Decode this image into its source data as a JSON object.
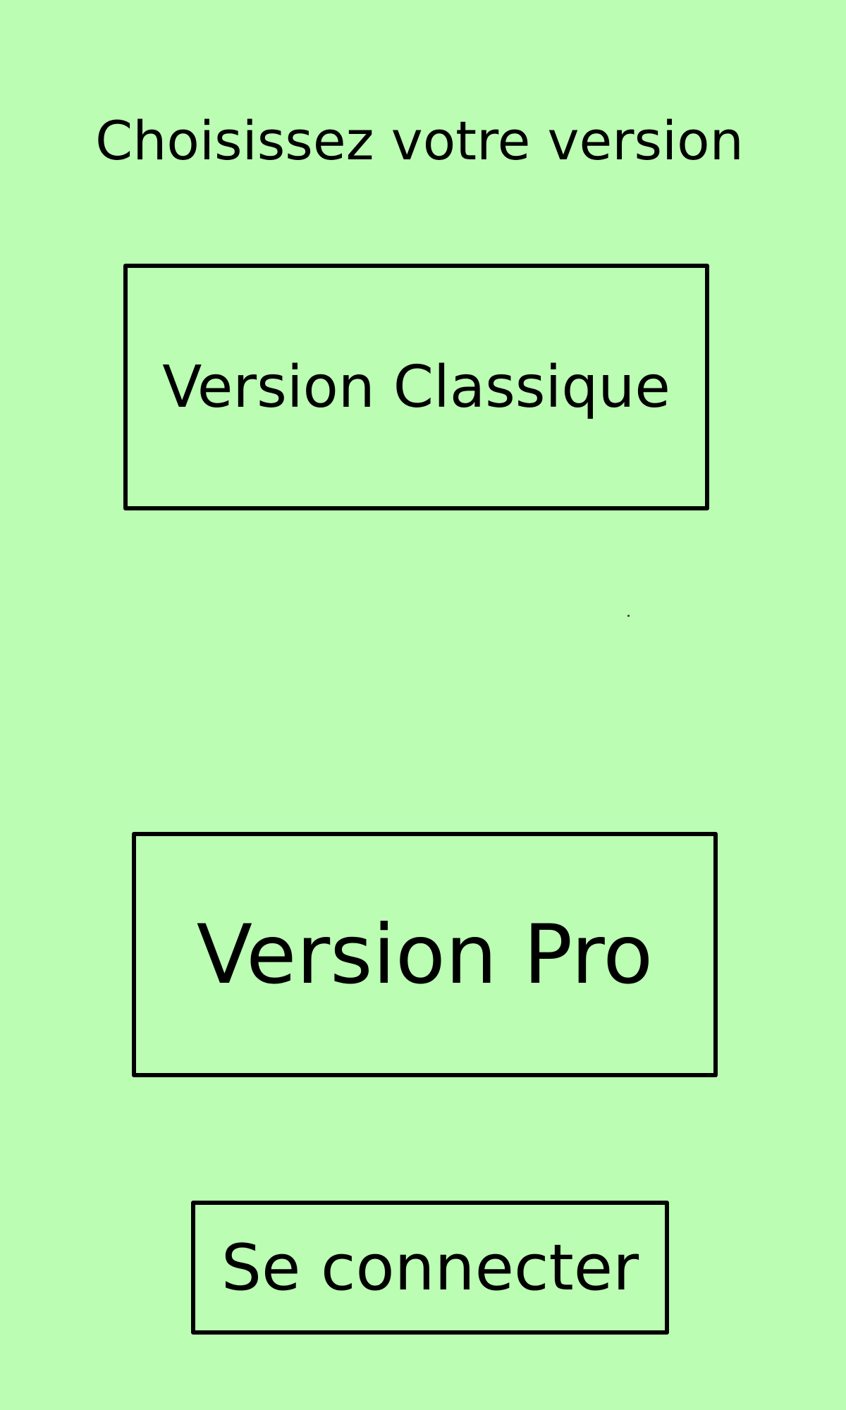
{
  "screen": {
    "title": "Choisissez votre version",
    "background_color": "#bbfdb3"
  },
  "buttons": {
    "classic_label": "Version Classique",
    "pro_label": "Version Pro",
    "login_label": "Se connecter"
  }
}
